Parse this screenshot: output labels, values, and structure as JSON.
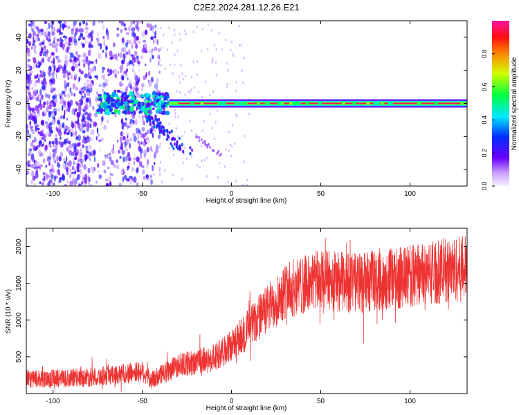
{
  "title": "C2E2.2024.281.12.26.E21",
  "chart_data": [
    {
      "type": "heatmap",
      "xlabel": "Height of straight line (km)",
      "ylabel": "Frequency (Hz)",
      "xlim": [
        -115,
        132
      ],
      "ylim": [
        -50,
        50
      ],
      "xticks": [
        -100,
        -50,
        0,
        50,
        100
      ],
      "yticks": [
        -40,
        -20,
        0,
        20,
        40
      ],
      "colorbar": {
        "label": "Normalized spectral amplitude",
        "range": [
          0.0,
          1.0
        ],
        "ticks": [
          0.0,
          0.2,
          0.4,
          0.6,
          0.8
        ]
      },
      "features": [
        {
          "name": "dc-line",
          "x_start": -35,
          "x_end": 132,
          "frequency": 0,
          "amplitude": 0.95
        },
        {
          "name": "cluster",
          "x_start": -75,
          "x_end": -35,
          "frequency": 0,
          "amplitude": 0.4
        },
        {
          "name": "descending-streak",
          "x_start": -50,
          "x_end": -25,
          "frequency_start": -5,
          "frequency_end": -30,
          "amplitude": 0.25
        },
        {
          "name": "noise-field",
          "x_start": -115,
          "x_end": -45,
          "amplitude": 0.15
        }
      ],
      "grid": false
    },
    {
      "type": "line",
      "xlabel": "Height of straight line (km)",
      "ylabel": "SNR (10 * v/v)",
      "xlim": [
        -115,
        132
      ],
      "ylim": [
        0,
        2250
      ],
      "xticks": [
        -100,
        -50,
        0,
        50,
        100
      ],
      "yticks": [
        500,
        1000,
        1500,
        2000
      ],
      "color": "#ee3333",
      "trend": {
        "x": [
          -115,
          -80,
          -60,
          -50,
          -45,
          -30,
          -10,
          0,
          10,
          20,
          30,
          50,
          70,
          90,
          110,
          132
        ],
        "y": [
          200,
          220,
          270,
          300,
          180,
          380,
          480,
          650,
          900,
          1150,
          1400,
          1550,
          1500,
          1550,
          1650,
          1700
        ]
      },
      "grid": false
    }
  ]
}
